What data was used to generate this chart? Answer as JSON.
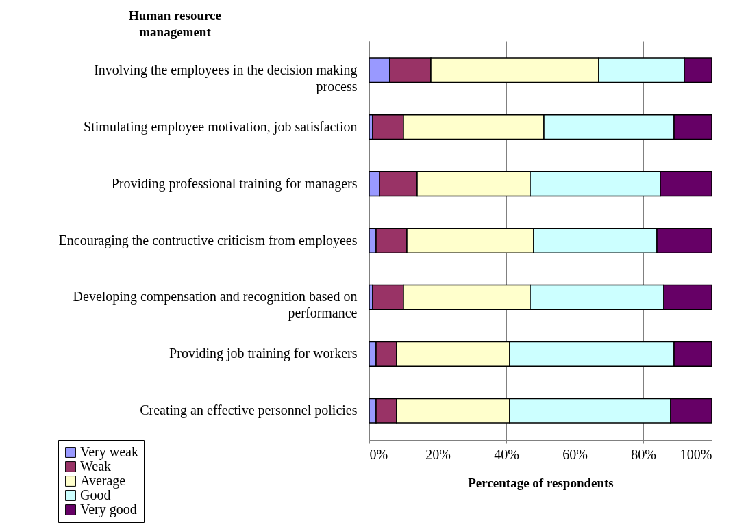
{
  "chart_data": {
    "type": "bar",
    "orientation": "horizontal",
    "stacked": true,
    "ylabel": "Human resource management",
    "xlabel": "Percentage of respondents",
    "categories": [
      "Involving the employees in the decision making process",
      "Stimulating employee motivation, job satisfaction",
      "Providing professional training for managers",
      "Encouraging the contructive criticism from employees",
      "Developing compensation and recognition based on performance",
      "Providing job training for workers",
      "Creating an effective personnel policies"
    ],
    "series": [
      {
        "name": "Very weak",
        "color": "#9999ff",
        "values": [
          6,
          1,
          3,
          2,
          1,
          2,
          2
        ]
      },
      {
        "name": "Weak",
        "color": "#993366",
        "values": [
          12,
          9,
          11,
          9,
          9,
          6,
          6
        ]
      },
      {
        "name": "Average",
        "color": "#ffffcc",
        "values": [
          49,
          41,
          33,
          37,
          37,
          33,
          33
        ]
      },
      {
        "name": "Good",
        "color": "#ccffff",
        "values": [
          25,
          38,
          38,
          36,
          39,
          48,
          47
        ]
      },
      {
        "name": "Very good",
        "color": "#660066",
        "values": [
          8,
          11,
          15,
          16,
          14,
          11,
          12
        ]
      }
    ],
    "xlim": [
      0,
      100
    ],
    "xticks": [
      {
        "value": 0,
        "label": "0%"
      },
      {
        "value": 20,
        "label": "20%"
      },
      {
        "value": 40,
        "label": "40%"
      },
      {
        "value": 60,
        "label": "60%"
      },
      {
        "value": 80,
        "label": "80%"
      },
      {
        "value": 100,
        "label": "100%"
      }
    ],
    "grid": "x",
    "legend": "bottom left"
  }
}
